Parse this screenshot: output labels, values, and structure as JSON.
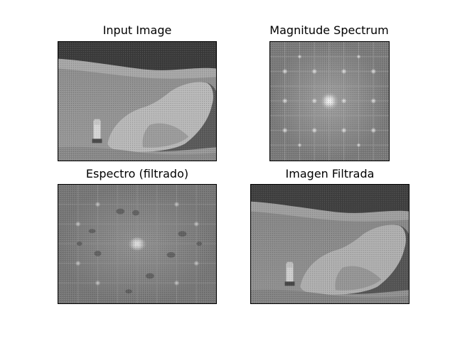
{
  "panels": [
    {
      "id": "input",
      "title": "Input Image"
    },
    {
      "id": "magnitude",
      "title": "Magnitude Spectrum"
    },
    {
      "id": "filtered_spectrum",
      "title": "Espectro (filtrado)"
    },
    {
      "id": "filtered_image",
      "title": "Imagen Filtrada"
    }
  ],
  "colormap": "gray"
}
